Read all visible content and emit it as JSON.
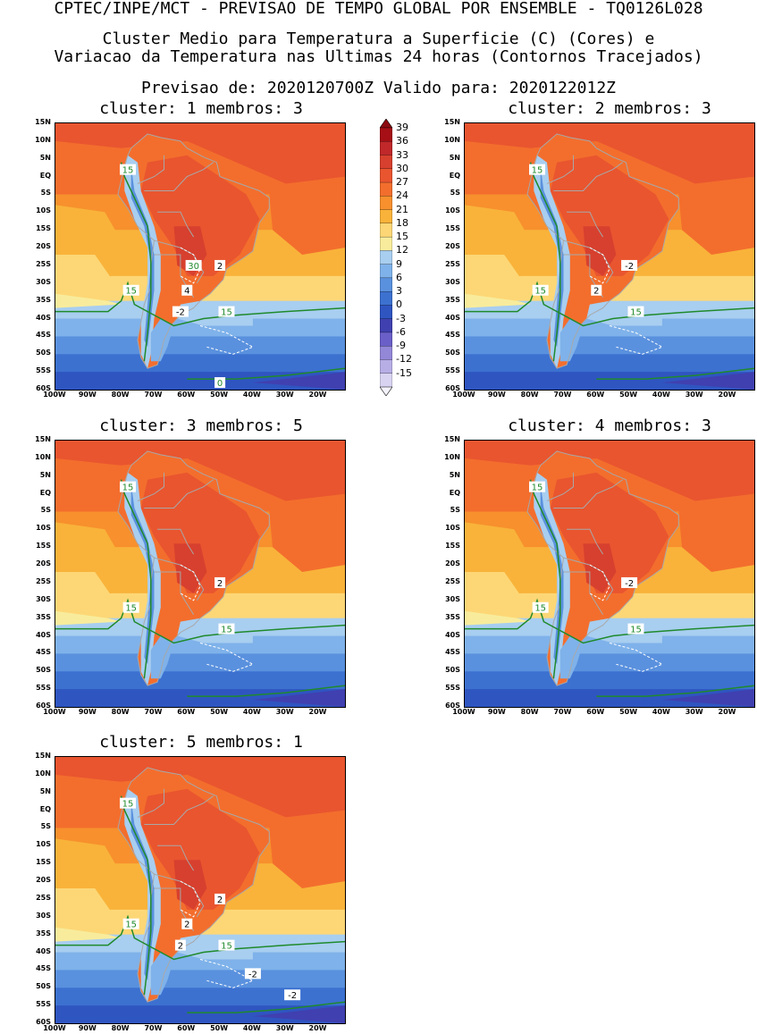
{
  "header": {
    "line1": "CPTEC/INPE/MCT - PREVISAO DE TEMPO GLOBAL POR ENSEMBLE - TQ0126L028",
    "line2": "Cluster Medio para Temperatura a Superficie (C) (Cores) e",
    "line3": "Variacao da Temperatura nas Ultimas 24 horas (Contornos Tracejados)",
    "line4": "Previsao de: 2020120700Z   Valido para: 2020122012Z"
  },
  "lat_labels": [
    "15N",
    "10N",
    "5N",
    "EQ",
    "5S",
    "10S",
    "15S",
    "20S",
    "25S",
    "30S",
    "35S",
    "40S",
    "45S",
    "50S",
    "55S",
    "60S"
  ],
  "lon_labels": [
    "100W",
    "90W",
    "80W",
    "70W",
    "60W",
    "50W",
    "40W",
    "30W",
    "20W"
  ],
  "colorbar": {
    "labels": [
      "39",
      "36",
      "33",
      "30",
      "27",
      "24",
      "21",
      "18",
      "15",
      "12",
      "9",
      "6",
      "3",
      "0",
      "-3",
      "-6",
      "-9",
      "-12",
      "-15"
    ],
    "colors": [
      "#a50f15",
      "#c0282a",
      "#d7402e",
      "#e9552f",
      "#f36e2d",
      "#f7902d",
      "#f9b33a",
      "#fdd776",
      "#f8ec9c",
      "#a8cef0",
      "#7fb2ea",
      "#5a91de",
      "#3c71d0",
      "#2f55c1",
      "#4040b0",
      "#6a5fc8",
      "#9387d8",
      "#b7aee6",
      "#d9d3f2"
    ]
  },
  "clusters": [
    {
      "title": "cluster: 1  membros: 3",
      "labels": {
        "green": [
          "15",
          "15",
          "15",
          "30",
          "0"
        ],
        "white": [
          "2",
          "4",
          "-2"
        ]
      }
    },
    {
      "title": "cluster: 2  membros: 3",
      "labels": {
        "green": [
          "15",
          "15",
          "15"
        ],
        "white": [
          "-2",
          "2"
        ]
      }
    },
    {
      "title": "cluster: 3  membros: 5",
      "labels": {
        "green": [
          "15",
          "15",
          "15"
        ],
        "white": [
          "2"
        ]
      }
    },
    {
      "title": "cluster: 4  membros: 3",
      "labels": {
        "green": [
          "15",
          "15",
          "15"
        ],
        "white": [
          "-2"
        ]
      }
    },
    {
      "title": "cluster: 5  membros: 1",
      "labels": {
        "green": [
          "15",
          "15",
          "15"
        ],
        "white": [
          "2",
          "2",
          "2",
          "-2",
          "-2"
        ]
      }
    }
  ]
}
